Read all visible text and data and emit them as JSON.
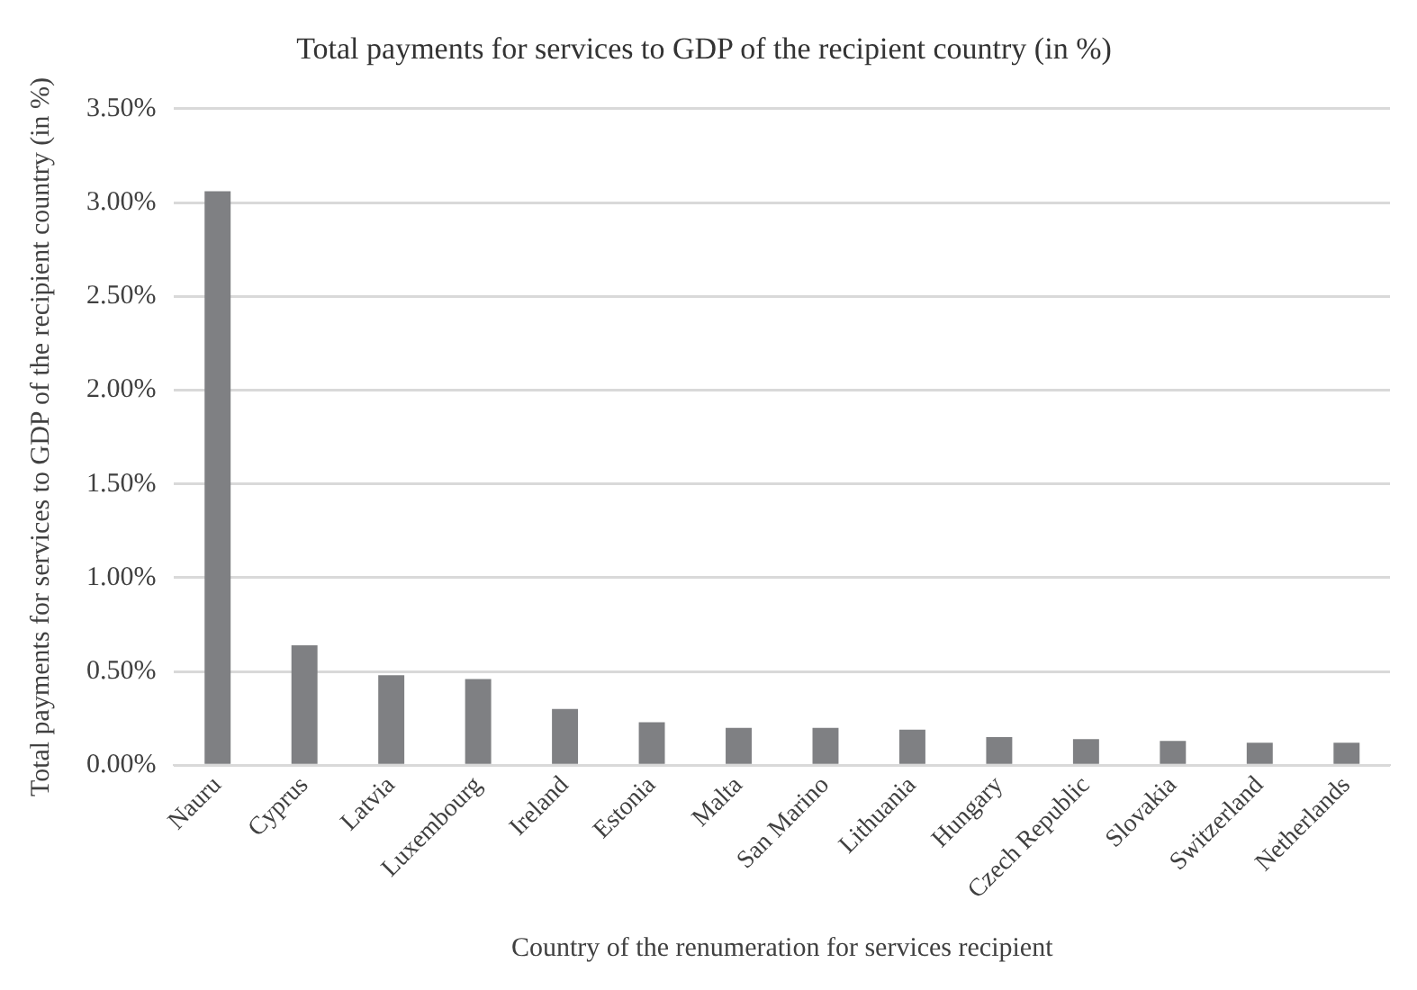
{
  "chart_data": {
    "type": "bar",
    "title": "Total payments for services to GDP of the recipient country (in %)",
    "xlabel": "Country of the renumeration for services recipient",
    "ylabel": "Total payments for services to GDP of the recipient country (in %)",
    "categories": [
      "Nauru",
      "Cyprus",
      "Latvia",
      "Luxembourg",
      "Ireland",
      "Estonia",
      "Malta",
      "San Marino",
      "Lithuania",
      "Hungary",
      "Czech Republic",
      "Slovakia",
      "Switzerland",
      "Netherlands"
    ],
    "series": [
      {
        "color": "#7f8083",
        "values": [
          3.06,
          0.64,
          0.48,
          0.46,
          0.3,
          0.23,
          0.2,
          0.2,
          0.19,
          0.15,
          0.14,
          0.13,
          0.12,
          0.12
        ]
      }
    ],
    "ylim": [
      0,
      3.5
    ],
    "yticks": [
      {
        "value": 0,
        "label": "0.00%"
      },
      {
        "value": 0.5,
        "label": "0.50%"
      },
      {
        "value": 1,
        "label": "1.00%"
      },
      {
        "value": 1.5,
        "label": "1.50%"
      },
      {
        "value": 2,
        "label": "2.00%"
      },
      {
        "value": 2.5,
        "label": "2.50%"
      },
      {
        "value": 3,
        "label": "3.00%"
      },
      {
        "value": 3.5,
        "label": "3.50%"
      }
    ],
    "grid": "y",
    "legend": false
  }
}
